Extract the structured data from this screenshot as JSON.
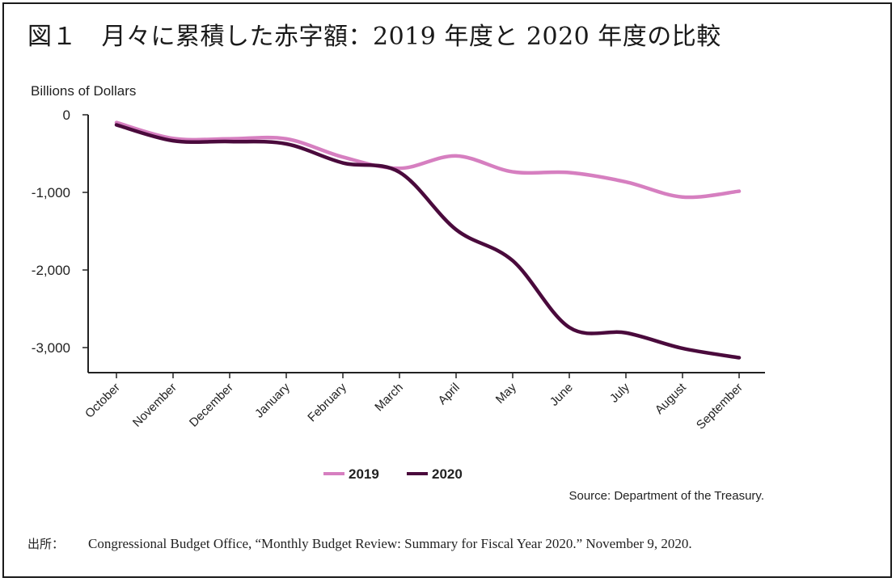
{
  "figure": {
    "title": "図１　月々に累積した赤字額：2019 年度と 2020 年度の比較",
    "source_note": "Source: Department of the Treasury.",
    "footer_label": "出所：",
    "footer_text": "Congressional Budget Office, “Monthly Budget Review: Summary for Fiscal Year 2020.” November 9, 2020."
  },
  "chart_data": {
    "type": "line",
    "title": "",
    "xlabel": "",
    "ylabel": "Billions of Dollars",
    "ylim": [
      -3300,
      0
    ],
    "yticks": [
      0,
      -1000,
      -2000,
      -3000
    ],
    "ytick_labels": [
      "0",
      "-1,000",
      "-2,000",
      "-3,000"
    ],
    "categories": [
      "October",
      "November",
      "December",
      "January",
      "February",
      "March",
      "April",
      "May",
      "June",
      "July",
      "August",
      "September"
    ],
    "series": [
      {
        "name": "2019",
        "color": "#d67fc0",
        "values": [
          -100,
          -305,
          -310,
          -310,
          -545,
          -690,
          -530,
          -735,
          -745,
          -865,
          -1060,
          -985
        ]
      },
      {
        "name": "2020",
        "color": "#4a0a3c",
        "values": [
          -130,
          -335,
          -345,
          -375,
          -620,
          -740,
          -1480,
          -1880,
          -2740,
          -2810,
          -3010,
          -3130
        ]
      }
    ],
    "legend_position": "bottom-center",
    "grid": false
  }
}
